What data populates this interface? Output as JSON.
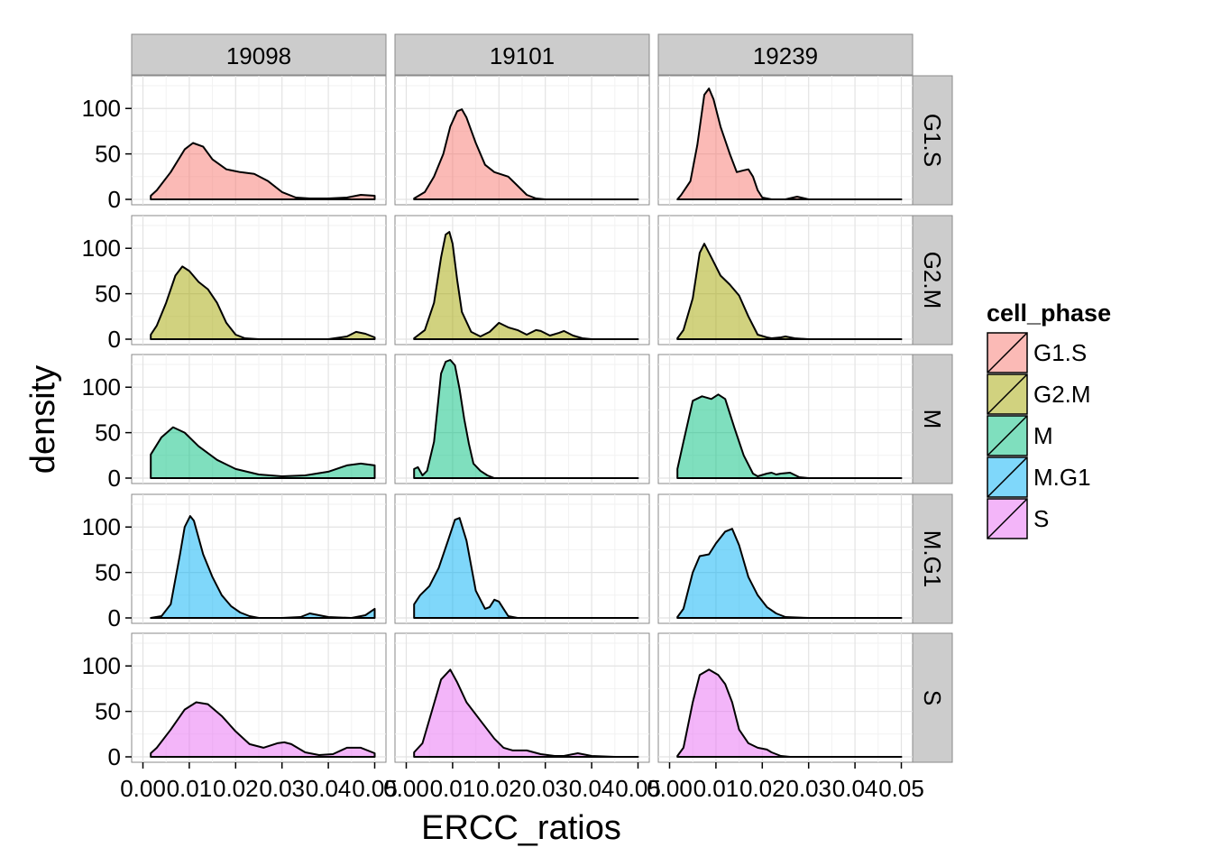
{
  "chart_data": {
    "type": "area",
    "xlabel": "ERCC_ratios",
    "ylabel": "density",
    "xlim": [
      0,
      0.05
    ],
    "ylim": [
      0,
      130
    ],
    "x_ticks": [
      "0.00",
      "0.01",
      "0.02",
      "0.03",
      "0.04",
      "0.05"
    ],
    "y_ticks": [
      "0",
      "50",
      "100"
    ],
    "grid": true,
    "columns": [
      "19098",
      "19101",
      "19239"
    ],
    "rows": [
      "G1.S",
      "G2.M",
      "M",
      "M.G1",
      "S"
    ],
    "legend": {
      "title": "cell_phase",
      "position": "right",
      "items": [
        {
          "label": "G1.S",
          "color": "#F8766D"
        },
        {
          "label": "G2.M",
          "color": "#A3A500"
        },
        {
          "label": "M",
          "color": "#00BF7D"
        },
        {
          "label": "M.G1",
          "color": "#00B0F6"
        },
        {
          "label": "S",
          "color": "#E76BF3"
        }
      ]
    },
    "panels": [
      {
        "column": "19098",
        "row": "G1.S",
        "x": [
          0.0017,
          0.003,
          0.006,
          0.009,
          0.0108,
          0.013,
          0.015,
          0.018,
          0.021,
          0.024,
          0.027,
          0.03,
          0.033,
          0.036,
          0.04,
          0.044,
          0.047,
          0.05
        ],
        "y": [
          4,
          10,
          30,
          55,
          62,
          58,
          44,
          33,
          30,
          28,
          20,
          8,
          2,
          1,
          1,
          2,
          5,
          4
        ]
      },
      {
        "column": "19098",
        "row": "G2.M",
        "x": [
          0.0017,
          0.003,
          0.005,
          0.007,
          0.0085,
          0.01,
          0.012,
          0.014,
          0.016,
          0.018,
          0.02,
          0.022,
          0.025,
          0.03,
          0.035,
          0.04,
          0.044,
          0.046,
          0.048,
          0.05
        ],
        "y": [
          5,
          15,
          40,
          70,
          80,
          75,
          63,
          55,
          40,
          18,
          5,
          1,
          0,
          0,
          0,
          0,
          3,
          8,
          6,
          2
        ]
      },
      {
        "column": "19098",
        "row": "M",
        "x": [
          0.0017,
          0.0017,
          0.004,
          0.0065,
          0.009,
          0.012,
          0.016,
          0.02,
          0.025,
          0.03,
          0.035,
          0.04,
          0.044,
          0.047,
          0.05
        ],
        "y": [
          0,
          26,
          45,
          56,
          50,
          35,
          20,
          10,
          4,
          2,
          3,
          7,
          14,
          16,
          14
        ]
      },
      {
        "column": "19098",
        "row": "M.G1",
        "x": [
          0.0017,
          0.004,
          0.006,
          0.008,
          0.009,
          0.0102,
          0.011,
          0.013,
          0.015,
          0.017,
          0.019,
          0.021,
          0.023,
          0.025,
          0.03,
          0.034,
          0.036,
          0.04,
          0.045,
          0.048,
          0.05
        ],
        "y": [
          0,
          2,
          15,
          70,
          100,
          112,
          107,
          70,
          45,
          25,
          13,
          6,
          2,
          0,
          0,
          1,
          5,
          1,
          0,
          3,
          10
        ]
      },
      {
        "column": "19098",
        "row": "S",
        "x": [
          0.0017,
          0.003,
          0.006,
          0.009,
          0.0115,
          0.014,
          0.017,
          0.02,
          0.023,
          0.026,
          0.029,
          0.0305,
          0.032,
          0.035,
          0.038,
          0.041,
          0.044,
          0.047,
          0.05
        ],
        "y": [
          4,
          10,
          30,
          52,
          60,
          58,
          45,
          28,
          14,
          10,
          15,
          16,
          14,
          5,
          2,
          3,
          10,
          10,
          4
        ]
      },
      {
        "column": "19101",
        "row": "G1.S",
        "x": [
          0.0017,
          0.004,
          0.006,
          0.008,
          0.0095,
          0.011,
          0.012,
          0.013,
          0.015,
          0.017,
          0.019,
          0.022,
          0.024,
          0.026,
          0.028,
          0.03,
          0.035,
          0.04,
          0.045,
          0.05
        ],
        "y": [
          1,
          8,
          25,
          50,
          80,
          97,
          99,
          90,
          62,
          38,
          30,
          25,
          15,
          5,
          1,
          0,
          0,
          0,
          0,
          0
        ]
      },
      {
        "column": "19101",
        "row": "G2.M",
        "x": [
          0.0017,
          0.004,
          0.006,
          0.0075,
          0.0085,
          0.0093,
          0.01,
          0.011,
          0.012,
          0.014,
          0.016,
          0.018,
          0.02,
          0.022,
          0.024,
          0.026,
          0.028,
          0.029,
          0.031,
          0.033,
          0.034,
          0.036,
          0.038,
          0.04,
          0.045,
          0.05
        ],
        "y": [
          1,
          10,
          40,
          90,
          115,
          118,
          105,
          65,
          30,
          8,
          3,
          8,
          18,
          13,
          10,
          5,
          10,
          9,
          4,
          7,
          9,
          4,
          1,
          0,
          0,
          0
        ]
      },
      {
        "column": "19101",
        "row": "M",
        "x": [
          0.0017,
          0.0025,
          0.0035,
          0.0045,
          0.006,
          0.0075,
          0.0085,
          0.0095,
          0.0105,
          0.0115,
          0.0125,
          0.0135,
          0.0145,
          0.016,
          0.0175,
          0.019,
          0.022,
          0.03,
          0.04,
          0.05
        ],
        "y": [
          10,
          12,
          3,
          8,
          40,
          115,
          128,
          130,
          124,
          98,
          65,
          38,
          16,
          8,
          3,
          0,
          0,
          0,
          0,
          0
        ]
      },
      {
        "column": "19101",
        "row": "M.G1",
        "x": [
          0.0017,
          0.003,
          0.005,
          0.007,
          0.009,
          0.0105,
          0.0115,
          0.013,
          0.015,
          0.017,
          0.018,
          0.019,
          0.02,
          0.021,
          0.022,
          0.024,
          0.026,
          0.03,
          0.04,
          0.05
        ],
        "y": [
          15,
          25,
          35,
          55,
          85,
          108,
          110,
          85,
          30,
          10,
          12,
          20,
          18,
          10,
          2,
          0,
          0,
          0,
          0,
          0
        ]
      },
      {
        "column": "19101",
        "row": "S",
        "x": [
          0.0017,
          0.0035,
          0.0055,
          0.0075,
          0.0095,
          0.011,
          0.013,
          0.016,
          0.019,
          0.021,
          0.023,
          0.026,
          0.029,
          0.032,
          0.034,
          0.037,
          0.04,
          0.045,
          0.05
        ],
        "y": [
          5,
          15,
          50,
          85,
          96,
          82,
          60,
          40,
          20,
          10,
          7,
          7,
          3,
          1,
          1,
          4,
          1,
          0,
          0
        ]
      },
      {
        "column": "19239",
        "row": "G1.S",
        "x": [
          0.0017,
          0.0025,
          0.0045,
          0.006,
          0.0075,
          0.0085,
          0.0095,
          0.011,
          0.013,
          0.0145,
          0.016,
          0.017,
          0.018,
          0.019,
          0.02,
          0.022,
          0.025,
          0.0275,
          0.03,
          0.035,
          0.04,
          0.05
        ],
        "y": [
          0,
          5,
          20,
          60,
          115,
          122,
          110,
          80,
          50,
          30,
          32,
          33,
          25,
          10,
          2,
          0,
          0,
          3,
          0,
          0,
          0,
          0
        ]
      },
      {
        "column": "19239",
        "row": "G2.M",
        "x": [
          0.0017,
          0.003,
          0.005,
          0.0065,
          0.0075,
          0.009,
          0.011,
          0.013,
          0.015,
          0.017,
          0.019,
          0.021,
          0.022,
          0.024,
          0.025,
          0.027,
          0.03,
          0.04,
          0.05
        ],
        "y": [
          1,
          10,
          45,
          95,
          105,
          90,
          70,
          60,
          48,
          25,
          5,
          2,
          1,
          2,
          3,
          1,
          0,
          0,
          0
        ]
      },
      {
        "column": "19239",
        "row": "M",
        "x": [
          0.0017,
          0.003,
          0.005,
          0.007,
          0.009,
          0.0105,
          0.012,
          0.014,
          0.016,
          0.018,
          0.019,
          0.021,
          0.022,
          0.023,
          0.024,
          0.026,
          0.028,
          0.03,
          0.04,
          0.05
        ],
        "y": [
          10,
          40,
          85,
          90,
          87,
          92,
          87,
          55,
          25,
          5,
          2,
          5,
          6,
          4,
          5,
          6,
          1,
          0,
          0,
          0
        ]
      },
      {
        "column": "19239",
        "row": "M.G1",
        "x": [
          0.0017,
          0.003,
          0.005,
          0.0065,
          0.0085,
          0.01,
          0.012,
          0.0135,
          0.015,
          0.017,
          0.019,
          0.021,
          0.023,
          0.025,
          0.03,
          0.035,
          0.04,
          0.05
        ],
        "y": [
          1,
          10,
          50,
          68,
          70,
          82,
          95,
          98,
          80,
          45,
          25,
          12,
          5,
          1,
          0,
          0,
          0,
          0
        ]
      },
      {
        "column": "19239",
        "row": "S",
        "x": [
          0.0017,
          0.003,
          0.005,
          0.0065,
          0.0085,
          0.0105,
          0.012,
          0.0135,
          0.015,
          0.017,
          0.019,
          0.021,
          0.022,
          0.024,
          0.026,
          0.03,
          0.04,
          0.05
        ],
        "y": [
          1,
          10,
          60,
          90,
          96,
          90,
          80,
          60,
          30,
          15,
          10,
          8,
          5,
          1,
          0,
          0,
          0,
          0
        ]
      }
    ]
  }
}
